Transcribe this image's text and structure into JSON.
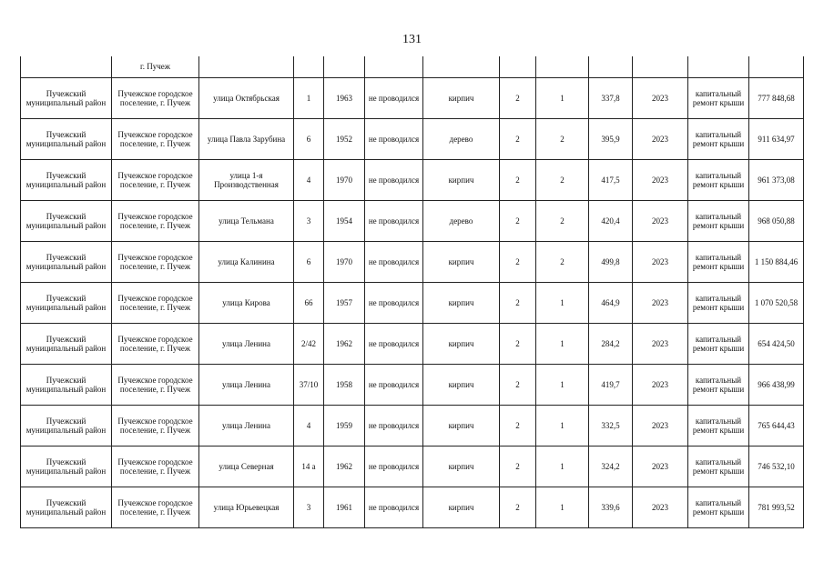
{
  "page_number": "131",
  "continuation_row": {
    "settlement_tail": "г. Пучеж"
  },
  "rows": [
    {
      "district": "Пучежский муниципальный район",
      "settlement": "Пучежское городское поселение, г. Пучеж",
      "street": "улица Октябрьская",
      "house": "1",
      "year": "1963",
      "last_repair": "не проводился",
      "material": "кирпич",
      "floors": "2",
      "entrances": "1",
      "area": "337,8",
      "plan_year": "2023",
      "work": "капитальный ремонт крыши",
      "cost": "777 848,68"
    },
    {
      "district": "Пучежский муниципальный район",
      "settlement": "Пучежское городское поселение, г. Пучеж",
      "street": "улица Павла Зарубина",
      "house": "6",
      "year": "1952",
      "last_repair": "не проводился",
      "material": "дерево",
      "floors": "2",
      "entrances": "2",
      "area": "395,9",
      "plan_year": "2023",
      "work": "капитальный ремонт крыши",
      "cost": "911 634,97"
    },
    {
      "district": "Пучежский муниципальный район",
      "settlement": "Пучежское городское поселение, г. Пучеж",
      "street": "улица 1-я Производственная",
      "house": "4",
      "year": "1970",
      "last_repair": "не проводился",
      "material": "кирпич",
      "floors": "2",
      "entrances": "2",
      "area": "417,5",
      "plan_year": "2023",
      "work": "капитальный ремонт крыши",
      "cost": "961 373,08"
    },
    {
      "district": "Пучежский муниципальный район",
      "settlement": "Пучежское городское поселение, г. Пучеж",
      "street": "улица Тельмана",
      "house": "3",
      "year": "1954",
      "last_repair": "не проводился",
      "material": "дерево",
      "floors": "2",
      "entrances": "2",
      "area": "420,4",
      "plan_year": "2023",
      "work": "капитальный ремонт крыши",
      "cost": "968 050,88"
    },
    {
      "district": "Пучежский муниципальный район",
      "settlement": "Пучежское городское поселение, г. Пучеж",
      "street": "улица Калинина",
      "house": "6",
      "year": "1970",
      "last_repair": "не проводился",
      "material": "кирпич",
      "floors": "2",
      "entrances": "2",
      "area": "499,8",
      "plan_year": "2023",
      "work": "капитальный ремонт крыши",
      "cost": "1 150 884,46"
    },
    {
      "district": "Пучежский муниципальный район",
      "settlement": "Пучежское городское поселение, г. Пучеж",
      "street": "улица Кирова",
      "house": "66",
      "year": "1957",
      "last_repair": "не проводился",
      "material": "кирпич",
      "floors": "2",
      "entrances": "1",
      "area": "464,9",
      "plan_year": "2023",
      "work": "капитальный ремонт крыши",
      "cost": "1 070 520,58"
    },
    {
      "district": "Пучежский муниципальный район",
      "settlement": "Пучежское городское поселение, г. Пучеж",
      "street": "улица Ленина",
      "house": "2/42",
      "year": "1962",
      "last_repair": "не проводился",
      "material": "кирпич",
      "floors": "2",
      "entrances": "1",
      "area": "284,2",
      "plan_year": "2023",
      "work": "капитальный ремонт крыши",
      "cost": "654 424,50"
    },
    {
      "district": "Пучежский муниципальный район",
      "settlement": "Пучежское городское поселение, г. Пучеж",
      "street": "улица Ленина",
      "house": "37/10",
      "year": "1958",
      "last_repair": "не проводился",
      "material": "кирпич",
      "floors": "2",
      "entrances": "1",
      "area": "419,7",
      "plan_year": "2023",
      "work": "капитальный ремонт крыши",
      "cost": "966 438,99"
    },
    {
      "district": "Пучежский муниципальный район",
      "settlement": "Пучежское городское поселение, г. Пучеж",
      "street": "улица Ленина",
      "house": "4",
      "year": "1959",
      "last_repair": "не проводился",
      "material": "кирпич",
      "floors": "2",
      "entrances": "1",
      "area": "332,5",
      "plan_year": "2023",
      "work": "капитальный ремонт крыши",
      "cost": "765 644,43"
    },
    {
      "district": "Пучежский муниципальный район",
      "settlement": "Пучежское городское поселение, г. Пучеж",
      "street": "улица Северная",
      "house": "14 а",
      "year": "1962",
      "last_repair": "не проводился",
      "material": "кирпич",
      "floors": "2",
      "entrances": "1",
      "area": "324,2",
      "plan_year": "2023",
      "work": "капитальный ремонт крыши",
      "cost": "746 532,10"
    },
    {
      "district": "Пучежский муниципальный район",
      "settlement": "Пучежское городское поселение, г. Пучеж",
      "street": "улица Юрьевецкая",
      "house": "3",
      "year": "1961",
      "last_repair": "не проводился",
      "material": "кирпич",
      "floors": "2",
      "entrances": "1",
      "area": "339,6",
      "plan_year": "2023",
      "work": "капитальный ремонт крыши",
      "cost": "781 993,52"
    }
  ]
}
